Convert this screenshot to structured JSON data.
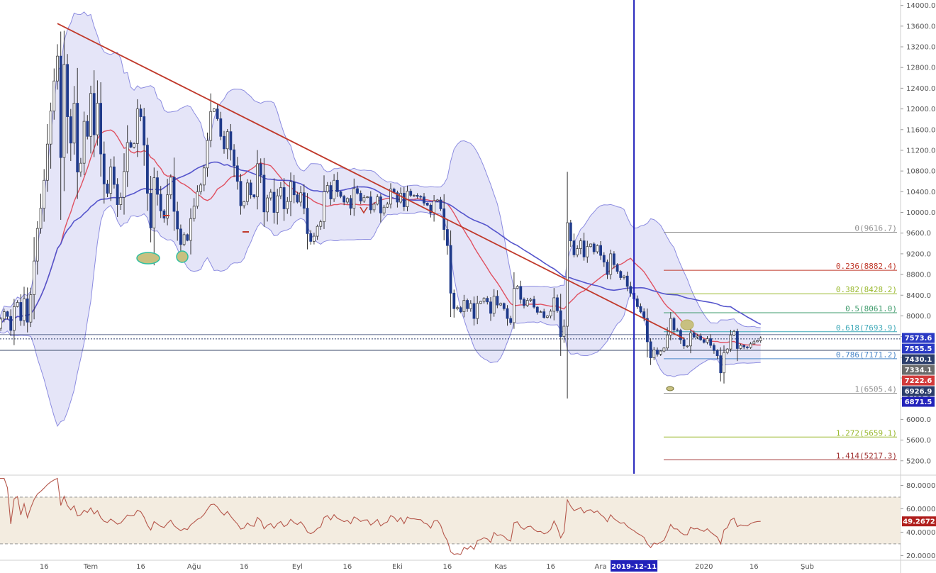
{
  "chart_data": [
    {
      "type": "candlestick",
      "yticks": [
        14000,
        13600,
        13200,
        12800,
        12400,
        12000,
        11600,
        11200,
        10800,
        10400,
        10000,
        9600,
        9200,
        8800,
        8400,
        8000,
        7600,
        7200,
        6800,
        6400,
        6000,
        5600,
        5200
      ],
      "ytick_labels": [
        "14000.0",
        "13600.0",
        "13200.0",
        "12800.0",
        "12400.0",
        "12000.0",
        "11600.0",
        "11200.0",
        "10800.0",
        "10400.0",
        "10000.0",
        "9600.0",
        "9200.0",
        "8800.0",
        "8400.0",
        "8000.0",
        "7600.0",
        "7200.0",
        "6800.0",
        "6400.0",
        "6000.0",
        "5600.0",
        "5200.0"
      ],
      "ylim": [
        4950,
        14050
      ],
      "xlabels": [
        "16",
        "Tem",
        "16",
        "Ağu",
        "16",
        "Eyl",
        "16",
        "Eki",
        "16",
        "Kas",
        "16",
        "Ara",
        "2019-12-11",
        "2020",
        "16",
        "Şub"
      ],
      "xlabel_days": [
        -14,
        0,
        15,
        31,
        46,
        62,
        77,
        92,
        107,
        123,
        138,
        153,
        163,
        184,
        199,
        215
      ],
      "highlighted_date": "2019-12-11",
      "closes": [
        7760,
        7940,
        8080,
        7990,
        7720,
        8180,
        8260,
        7910,
        8330,
        7880,
        8410,
        9060,
        9690,
        10080,
        10620,
        11320,
        11960,
        12540,
        13020,
        11060,
        12860,
        11850,
        11340,
        12110,
        10780,
        10950,
        11760,
        11470,
        12300,
        11500,
        12110,
        11130,
        10550,
        10370,
        10880,
        10540,
        10150,
        10290,
        10790,
        11350,
        11260,
        11330,
        12000,
        11850,
        11300,
        10370,
        9700,
        10670,
        10350,
        10030,
        9890,
        10340,
        10680,
        10020,
        9680,
        9380,
        9570,
        9460,
        9880,
        10120,
        10400,
        10530,
        10860,
        11390,
        11950,
        12000,
        11810,
        11470,
        11230,
        11560,
        11210,
        10900,
        10600,
        10130,
        10210,
        10570,
        10340,
        10300,
        10940,
        10720,
        10010,
        10280,
        10390,
        10000,
        10320,
        10480,
        10070,
        10210,
        10590,
        10340,
        10200,
        10380,
        10080,
        9590,
        9440,
        9540,
        9730,
        9820,
        10400,
        10520,
        10260,
        10620,
        10400,
        10310,
        10200,
        10270,
        10080,
        10460,
        10370,
        10220,
        10290,
        10300,
        10050,
        10160,
        10300,
        9990,
        10100,
        10160,
        10450,
        10380,
        10200,
        10370,
        10110,
        10410,
        10330,
        10330,
        10310,
        10300,
        10180,
        10140,
        9990,
        10220,
        10240,
        10070,
        9670,
        9360,
        8440,
        8140,
        8160,
        8080,
        8300,
        8140,
        8240,
        7950,
        8240,
        8280,
        8340,
        8270,
        8050,
        8380,
        8210,
        8240,
        8140,
        7950,
        7870,
        8530,
        8570,
        8320,
        8200,
        8300,
        8320,
        8170,
        8070,
        8080,
        7970,
        8000,
        8090,
        8350,
        8100,
        7600,
        7800,
        9800,
        9450,
        9180,
        9300,
        9450,
        9140,
        9340,
        9390,
        9240,
        9360,
        9170,
        9040,
        8800,
        9200,
        8990,
        8860,
        8740,
        8770,
        8570,
        8440,
        8330,
        8180,
        8080,
        7950,
        7500,
        7190,
        7340,
        7260,
        7320,
        7380,
        7630,
        7950,
        7730,
        7720,
        7540,
        7420,
        7420,
        7670,
        7590,
        7610,
        7540,
        7490,
        7560,
        7430,
        7330,
        7230,
        6900,
        7290,
        7360,
        7630,
        7700,
        7370,
        7430,
        7400,
        7390,
        7460,
        7500,
        7520,
        7570
      ],
      "series_names": {
        "ma_fast": "",
        "ma_slow": ""
      },
      "trendline": {
        "start_day": -10,
        "start_price": 13650,
        "end_day": 178,
        "end_price": 7560
      },
      "vertical_line_day": 163,
      "horizontal_levels": [
        7555.5,
        7334.1
      ],
      "fib_levels": [
        {
          "label": "0(9616.7)",
          "value": 9616.7,
          "color": "#909090"
        },
        {
          "label": "0.236(8882.4)",
          "value": 8882.4,
          "color": "#c0392b"
        },
        {
          "label": "0.382(8428.2)",
          "value": 8428.2,
          "color": "#9ab92f"
        },
        {
          "label": "0.5(8061.0)",
          "value": 8061.0,
          "color": "#3f9b6c"
        },
        {
          "label": "0.618(7693.9)",
          "value": 7693.9,
          "color": "#3fa9b8"
        },
        {
          "label": "0.786(7171.2)",
          "value": 7171.2,
          "color": "#4a86c8"
        },
        {
          "label": "1(6505.4)",
          "value": 6505.4,
          "color": "#909090"
        },
        {
          "label": "1.272(5659.1)",
          "value": 5659.1,
          "color": "#9ab92f"
        },
        {
          "label": "1.414(5217.3)",
          "value": 5217.3,
          "color": "#a03030"
        }
      ],
      "price_tags": [
        {
          "label": "7573.6",
          "value": 7573.6,
          "color": "#2b3ac4"
        },
        {
          "label": "7555.5",
          "value": 7555.5,
          "color": "#2b3ac4"
        },
        {
          "label": "7430.1",
          "value": 7430.1,
          "color": "#2c3e6b"
        },
        {
          "label": "7334.1",
          "value": 7334.1,
          "color": "#6b6b6b"
        },
        {
          "label": "7222.6",
          "value": 7222.6,
          "color": "#d23b3b"
        },
        {
          "label": "6926.9",
          "value": 6926.9,
          "color": "#2c3e6b"
        },
        {
          "label": "6871.5",
          "value": 6871.5,
          "color": "#2222bb"
        }
      ],
      "colors": {
        "candle_up": "#ffffff",
        "candle_down": "#1f3a8a",
        "wick": "#333333",
        "ma_fast": "#e05060",
        "ma_slow": "#5555cc",
        "band_line": "#8c8ce0",
        "band_fill": "#dcdcf5",
        "trendline": "#c0392b",
        "vertical_line": "#2222bb"
      }
    },
    {
      "type": "line",
      "yticks": [
        80,
        60,
        40,
        20
      ],
      "ytick_labels": [
        "80.0000",
        "60.0000",
        "40.0000",
        "20.0000"
      ],
      "ylim": [
        16,
        87
      ],
      "band": [
        30,
        70
      ],
      "last_value_label": "49.2672",
      "last_value": 49.27,
      "color": "#b5574b",
      "tag_color": "#b0201e"
    }
  ]
}
